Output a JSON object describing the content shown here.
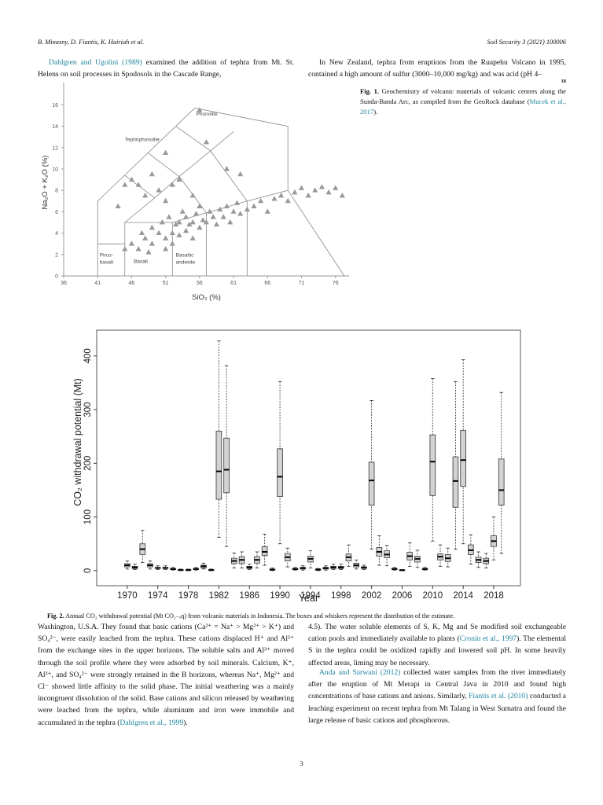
{
  "header": {
    "authors": "B. Minasny, D. Fiantis, K. Hairiah et al.",
    "journal": "Soil Security 3 (2021) 100006"
  },
  "top": {
    "left": [
      "Dahlgren and Ugolini (1989)",
      " examined the addition of tephra from Mt. St. Helens on soil processes in Spodosols in the Cascade Range,"
    ],
    "right": "In New Zealand, tephra from eruptions from the Ruapehu Volcano in 1995, contained a high amount of sulfur (3000–10,000 mg/kg) and was acid (pH 4–",
    "note": "18"
  },
  "fig1_caption": [
    "Fig. 1.",
    " Geochemistry of volcanic materials of volcanic centers along the Sunda-Banda Arc, as compiled from the GeoRock database (",
    "Mucek et al., 2017",
    ")."
  ],
  "fig2_caption": [
    "Fig. 2.",
    " Annual CO₂ withdrawal potential (Mt CO₂₋ₑq) from volcanic materials in Indonesia. The boxes and whiskers represent the distribution of the estimate."
  ],
  "bottom": {
    "left": [
      "Washington, U.S.A. They found that basic cations (Ca²⁺ = Na⁺ > Mg²⁺ > K⁺) and SO₄²⁻, were easily leached from the tephra. These cations displaced H⁺ and Al³⁺ from the exchange sites in the upper horizons. The soluble salts and Al³⁺ moved through the soil profile where they were adsorbed by soil minerals. Calcium, K⁺, Al³⁺, and SO₄²⁻ were strongly retained in the B horizons, whereas Na⁺, Mg²⁺ and Cl⁻ showed little affinity to the solid phase. The initial weathering was a mainly incongruent dissolution of the solid. Base cations and silicon released by weathering were leached from the tephra, while aluminum and iron were immobile and accumulated in the tephra (",
      "Dahlgren et al., 1999",
      ")."
    ],
    "right_1": [
      "4.5). The water soluble elements of S, K, Mg and Se modified soil exchangeable cation pools and immediately available to plants (",
      "Cronin et al., 1997",
      "). The elemental S in the tephra could be oxidized rapidly and lowered soil pH. In some heavily affected areas, liming may be necessary."
    ],
    "right_2": [
      "Anda and Sarwani (2012)",
      " collected water samples from the river immediately after the eruption of Mt Merapi in Central Java in 2010 and found high concentrations of base cations and anions. Similarly, ",
      "Fiantis et al. (2010)",
      " conducted a leaching experiment on recent tephra from Mt Talang in West Sumatra and found the large release of basic cations and phosphorous."
    ]
  },
  "page_number": "3",
  "chart_data": [
    {
      "type": "scatter",
      "x_label": "SiO₂ (%)",
      "y_label": "Na₂O + K₂O (%)",
      "color": "#999999",
      "xlim": [
        36,
        78
      ],
      "ylim": [
        0,
        17.5
      ],
      "xticks": [
        36,
        41,
        46,
        51,
        56,
        61,
        66,
        71,
        76
      ],
      "yticks": [
        0,
        2,
        4,
        6,
        8,
        10,
        12,
        14,
        16
      ],
      "annotations": [
        "Phonolite",
        "Tephriphonolite",
        [
          "Pirco-",
          "basalt"
        ],
        "Basalt",
        [
          "Basaltic",
          "andesite"
        ]
      ],
      "boundaries": [
        [
          [
            41,
            0
          ],
          [
            41,
            7
          ],
          [
            52.5,
            14
          ],
          [
            55.3,
            15.7
          ],
          [
            69,
            14
          ],
          [
            69,
            8
          ]
        ],
        [
          [
            41,
            3
          ],
          [
            45,
            3
          ]
        ],
        [
          [
            45,
            0
          ],
          [
            45,
            5
          ],
          [
            52,
            5
          ],
          [
            57,
            5.9
          ],
          [
            63,
            7
          ],
          [
            69,
            8
          ],
          [
            77.3,
            0
          ]
        ],
        [
          [
            52,
            0
          ],
          [
            52,
            5
          ]
        ],
        [
          [
            57,
            0
          ],
          [
            57,
            5.9
          ]
        ],
        [
          [
            63,
            0
          ],
          [
            63,
            7
          ]
        ],
        [
          [
            45,
            5
          ],
          [
            49.4,
            7.3
          ],
          [
            53,
            9.3
          ],
          [
            57.6,
            11.7
          ],
          [
            61,
            13.5
          ]
        ],
        [
          [
            49.4,
            7.3
          ],
          [
            45,
            9.4
          ]
        ],
        [
          [
            53,
            9.3
          ],
          [
            48.4,
            11.5
          ]
        ],
        [
          [
            57,
            5.9
          ],
          [
            53,
            9.3
          ]
        ],
        [
          [
            63,
            7
          ],
          [
            57.6,
            11.7
          ]
        ],
        [
          [
            57.6,
            11.7
          ],
          [
            52.5,
            14
          ]
        ]
      ],
      "x": [
        45,
        46,
        47,
        47.5,
        48,
        48.5,
        49,
        49,
        50,
        50.5,
        51,
        51,
        51.5,
        52,
        52,
        52.5,
        53,
        53,
        53.5,
        54,
        54,
        54.5,
        55,
        55,
        55.5,
        56,
        56,
        56.5,
        57,
        57.5,
        58,
        58.5,
        59,
        59.5,
        60,
        60.5,
        61,
        61.5,
        62,
        63,
        64,
        65,
        66,
        67,
        68,
        69,
        70,
        71,
        72,
        73,
        74,
        75,
        76,
        77,
        44,
        45,
        46,
        47,
        48,
        49,
        50,
        51,
        52,
        53,
        55,
        57,
        51,
        60,
        56,
        62
      ],
      "y": [
        2.5,
        3,
        2.5,
        4,
        3.5,
        2.2,
        4.5,
        3,
        4,
        5,
        3.5,
        2.5,
        5.5,
        4,
        3,
        4.8,
        5,
        3.8,
        6,
        4.2,
        5.5,
        4.8,
        5,
        3.5,
        5.8,
        4.5,
        6.5,
        5.2,
        5,
        6,
        5.5,
        4.8,
        6.2,
        5.5,
        6.5,
        5,
        6,
        6.8,
        5.8,
        6.2,
        6.5,
        7,
        6,
        7.2,
        7.5,
        7,
        7.8,
        8.2,
        7.5,
        8,
        8.3,
        7.8,
        8.2,
        7.5,
        6.5,
        8.5,
        9,
        8.5,
        7.5,
        9.5,
        8,
        7,
        8.5,
        9,
        7.5,
        12.5,
        11.5,
        10,
        15.5,
        9.5
      ]
    },
    {
      "type": "box",
      "x_label": "Year",
      "y_label": "CO₂ withdrawal potential (Mt)",
      "color": "#d3d3d3",
      "xlim": [
        1966,
        2021.5
      ],
      "ylim": [
        -28,
        448
      ],
      "xticks": [
        1970,
        1974,
        1978,
        1982,
        1986,
        1990,
        1994,
        1998,
        2002,
        2006,
        2010,
        2014,
        2018
      ],
      "yticks": [
        0,
        100,
        200,
        300,
        400
      ],
      "x": [
        1970,
        1971,
        1972,
        1973,
        1974,
        1975,
        1976,
        1977,
        1978,
        1979,
        1980,
        1981,
        1982,
        1983,
        1984,
        1985,
        1986,
        1987,
        1988,
        1989,
        1990,
        1991,
        1992,
        1993,
        1994,
        1995,
        1996,
        1997,
        1998,
        1999,
        2000,
        2001,
        2002,
        2003,
        2004,
        2005,
        2006,
        2007,
        2008,
        2009,
        2010,
        2011,
        2012,
        2013,
        2014,
        2015,
        2016,
        2017,
        2018,
        2019
      ],
      "low": [
        3,
        2,
        15,
        3,
        2,
        2,
        1,
        0,
        0,
        1,
        3,
        0,
        62,
        45,
        5,
        5,
        2,
        5,
        10,
        0,
        50,
        7,
        1,
        1,
        5,
        0,
        1,
        2,
        2,
        8,
        3,
        2,
        40,
        10,
        9,
        1,
        0,
        8,
        6,
        1,
        55,
        8,
        7,
        40,
        50,
        12,
        6,
        5,
        20,
        32
      ],
      "q1": [
        7,
        4,
        30,
        7,
        4,
        4,
        2,
        1,
        1,
        2,
        5,
        1,
        133,
        145,
        13,
        13,
        4,
        14,
        28,
        1,
        138,
        18,
        2,
        3,
        16,
        1,
        3,
        4,
        4,
        18,
        7,
        4,
        122,
        27,
        24,
        2,
        0,
        20,
        16,
        2,
        140,
        20,
        17,
        118,
        157,
        30,
        15,
        13,
        45,
        122
      ],
      "median": [
        10,
        6,
        40,
        10,
        5,
        5,
        3,
        1,
        1,
        3,
        8,
        1,
        185,
        188,
        18,
        20,
        6,
        20,
        35,
        2,
        175,
        25,
        3,
        5,
        22,
        2,
        5,
        6,
        6,
        25,
        10,
        6,
        168,
        35,
        30,
        3,
        1,
        27,
        22,
        3,
        203,
        26,
        23,
        167,
        206,
        38,
        20,
        18,
        55,
        150
      ],
      "q3": [
        13,
        8,
        50,
        13,
        6,
        6,
        4,
        2,
        2,
        4,
        10,
        2,
        260,
        247,
        23,
        26,
        8,
        26,
        45,
        3,
        227,
        32,
        4,
        6,
        27,
        3,
        6,
        8,
        8,
        31,
        14,
        7,
        202,
        43,
        37,
        4,
        1,
        34,
        27,
        4,
        253,
        31,
        30,
        212,
        261,
        48,
        25,
        23,
        65,
        208
      ],
      "high": [
        18,
        12,
        75,
        18,
        9,
        9,
        6,
        3,
        3,
        6,
        14,
        3,
        428,
        382,
        33,
        35,
        12,
        35,
        68,
        5,
        352,
        42,
        6,
        9,
        37,
        4,
        9,
        12,
        12,
        48,
        20,
        10,
        317,
        65,
        47,
        6,
        2,
        52,
        38,
        6,
        358,
        48,
        42,
        352,
        393,
        67,
        35,
        32,
        100,
        332
      ]
    }
  ]
}
